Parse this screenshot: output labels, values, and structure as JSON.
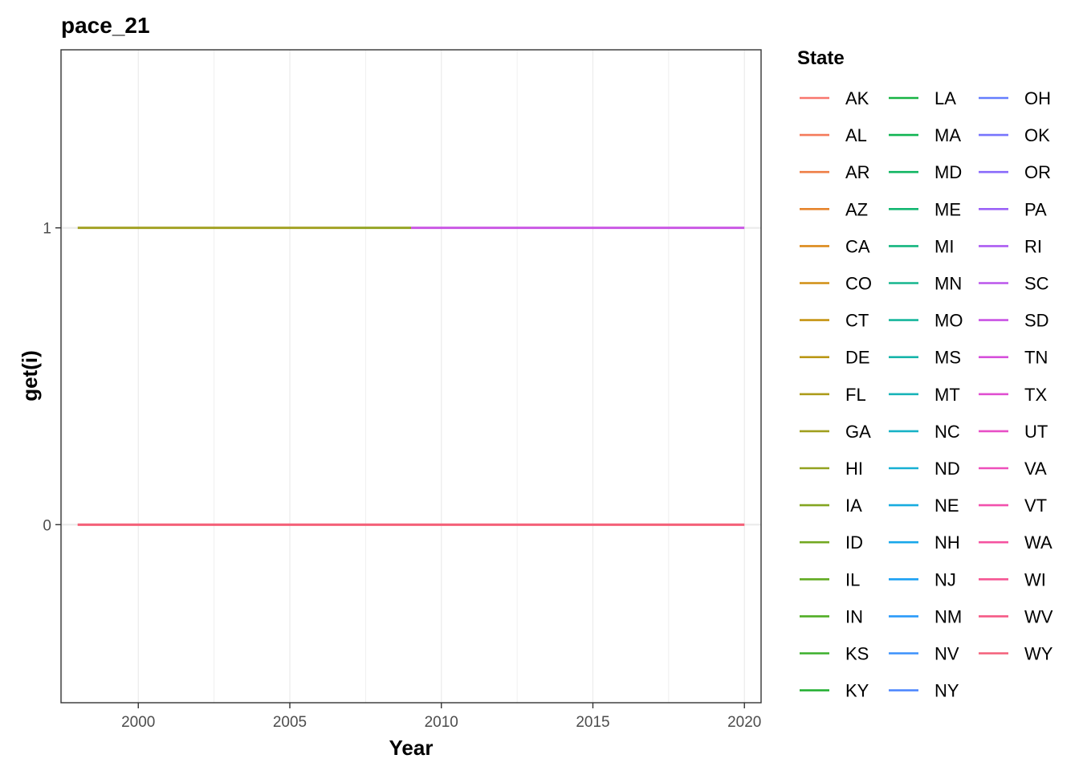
{
  "chart_data": {
    "type": "line",
    "title": "pace_21",
    "xlabel": "Year",
    "ylabel": "get(i)",
    "xlim": [
      1997.45,
      2020.55
    ],
    "ylim": [
      -0.6,
      1.6
    ],
    "x_ticks": [
      2000,
      2005,
      2010,
      2015,
      2020
    ],
    "x_tick_labels": [
      "2000",
      "2005",
      "2010",
      "2015",
      "2020"
    ],
    "x_minor_ticks": [
      1997.5,
      2002.5,
      2007.5,
      2012.5,
      2017.5
    ],
    "y_ticks": [
      0,
      1
    ],
    "y_tick_labels": [
      "0",
      "1"
    ],
    "grid": true,
    "legend": {
      "title": "State",
      "placement": "right",
      "columns": 3,
      "entries": [
        {
          "name": "AK",
          "color": "#F8766D"
        },
        {
          "name": "AL",
          "color": "#F47A5A"
        },
        {
          "name": "AR",
          "color": "#EE7E45"
        },
        {
          "name": "AZ",
          "color": "#E6842C"
        },
        {
          "name": "CA",
          "color": "#DC8A1B"
        },
        {
          "name": "CO",
          "color": "#D18F13"
        },
        {
          "name": "CT",
          "color": "#C69412"
        },
        {
          "name": "DE",
          "color": "#BA9816"
        },
        {
          "name": "FL",
          "color": "#AD9C1B"
        },
        {
          "name": "GA",
          "color": "#A09F1E"
        },
        {
          "name": "HI",
          "color": "#92A21F"
        },
        {
          "name": "IA",
          "color": "#83A520"
        },
        {
          "name": "ID",
          "color": "#73A821"
        },
        {
          "name": "IL",
          "color": "#62AB22"
        },
        {
          "name": "IN",
          "color": "#50AD25"
        },
        {
          "name": "KS",
          "color": "#3CAF2C"
        },
        {
          "name": "KY",
          "color": "#27B135"
        },
        {
          "name": "LA",
          "color": "#17B343"
        },
        {
          "name": "MA",
          "color": "#10B452"
        },
        {
          "name": "MD",
          "color": "#10B562"
        },
        {
          "name": "ME",
          "color": "#12B671"
        },
        {
          "name": "MI",
          "color": "#14B67F"
        },
        {
          "name": "MN",
          "color": "#16B68E"
        },
        {
          "name": "MO",
          "color": "#17B69C"
        },
        {
          "name": "MS",
          "color": "#18B5AA"
        },
        {
          "name": "MT",
          "color": "#18B4B8"
        },
        {
          "name": "NC",
          "color": "#18B2C6"
        },
        {
          "name": "ND",
          "color": "#17AFD3"
        },
        {
          "name": "NE",
          "color": "#17ACDF"
        },
        {
          "name": "NH",
          "color": "#18A7EA"
        },
        {
          "name": "NJ",
          "color": "#1CA1F3"
        },
        {
          "name": "NM",
          "color": "#2A9AF9"
        },
        {
          "name": "NV",
          "color": "#3C91FC"
        },
        {
          "name": "NY",
          "color": "#4F88FE"
        },
        {
          "name": "OH",
          "color": "#647EFE"
        },
        {
          "name": "OK",
          "color": "#7774FD"
        },
        {
          "name": "OR",
          "color": "#896AFB"
        },
        {
          "name": "PA",
          "color": "#9B62F7"
        },
        {
          "name": "RI",
          "color": "#AC5BF2"
        },
        {
          "name": "SC",
          "color": "#BB56EC"
        },
        {
          "name": "SD",
          "color": "#C953E4"
        },
        {
          "name": "TN",
          "color": "#D651DB"
        },
        {
          "name": "TX",
          "color": "#E050D1"
        },
        {
          "name": "UT",
          "color": "#E84FC6"
        },
        {
          "name": "VA",
          "color": "#EE4FBA"
        },
        {
          "name": "VT",
          "color": "#F251AD"
        },
        {
          "name": "WA",
          "color": "#F553A0"
        },
        {
          "name": "WI",
          "color": "#F55693"
        },
        {
          "name": "WV",
          "color": "#F55986"
        },
        {
          "name": "WY",
          "color": "#F4607A"
        }
      ]
    },
    "series": [
      {
        "name": "AK",
        "color": "#F8766D",
        "points": [
          [
            1998,
            0
          ],
          [
            2020,
            0
          ]
        ]
      },
      {
        "name": "GA",
        "color": "#A09F1E",
        "points": [
          [
            1998,
            1
          ],
          [
            2007,
            1
          ]
        ]
      },
      {
        "name": "HI",
        "color": "#92A21F",
        "points": [
          [
            2007,
            1
          ],
          [
            2009,
            1
          ]
        ]
      },
      {
        "name": "SD",
        "color": "#C953E4",
        "points": [
          [
            2009,
            1
          ],
          [
            2020,
            1
          ]
        ]
      },
      {
        "name": "WY",
        "color": "#F4607A",
        "points": [
          [
            1998,
            0
          ],
          [
            2020,
            0
          ]
        ]
      }
    ]
  }
}
